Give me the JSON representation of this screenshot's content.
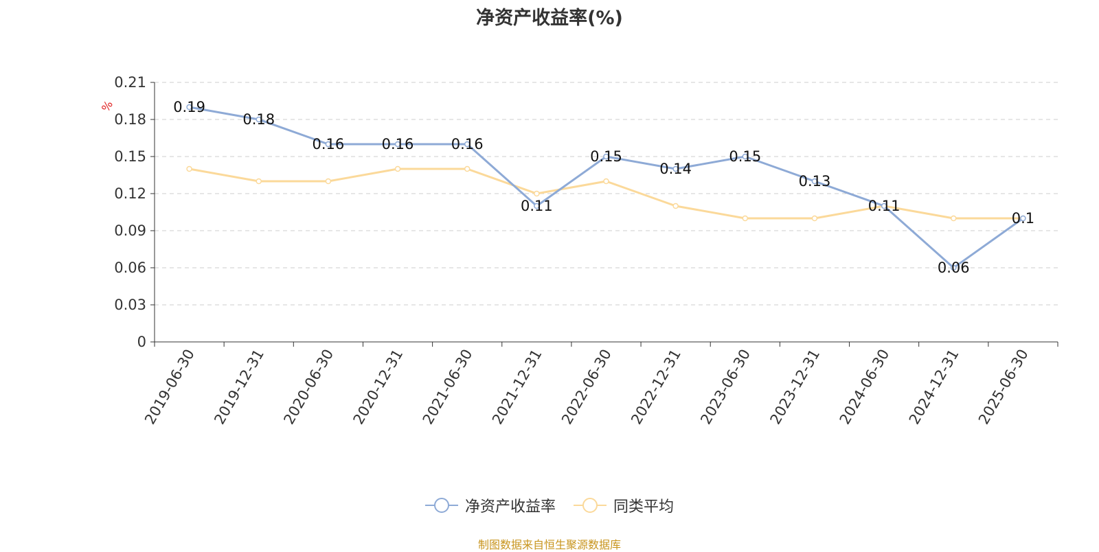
{
  "chart_data": {
    "type": "line",
    "title": "净资产收益率(%)",
    "ylabel": "%",
    "ylim": [
      0,
      0.21
    ],
    "yticks": [
      "0",
      "0.03",
      "0.06",
      "0.09",
      "0.12",
      "0.15",
      "0.18",
      "0.21"
    ],
    "grid": true,
    "legend_position": "bottom",
    "categories": [
      "2019-06-30",
      "2019-12-31",
      "2020-06-30",
      "2020-12-31",
      "2021-06-30",
      "2021-12-31",
      "2022-06-30",
      "2022-12-31",
      "2023-06-30",
      "2023-12-31",
      "2024-06-30",
      "2024-12-31",
      "2025-06-30"
    ],
    "series": [
      {
        "name": "净资产收益率",
        "color": "#8eaad6",
        "values": [
          0.19,
          0.18,
          0.16,
          0.16,
          0.16,
          0.11,
          0.15,
          0.14,
          0.15,
          0.13,
          0.11,
          0.06,
          0.1
        ],
        "labels": [
          "0.19",
          "0.18",
          "0.16",
          "0.16",
          "0.16",
          "0.11",
          "0.15",
          "0.14",
          "0.15",
          "0.13",
          "0.11",
          "0.06",
          "0.1"
        ]
      },
      {
        "name": "同类平均",
        "color": "#fbd99a",
        "values": [
          0.14,
          0.13,
          0.13,
          0.14,
          0.14,
          0.12,
          0.13,
          0.11,
          0.1,
          0.1,
          0.11,
          0.1,
          0.1
        ]
      }
    ]
  },
  "source": "制图数据来自恒生聚源数据库"
}
